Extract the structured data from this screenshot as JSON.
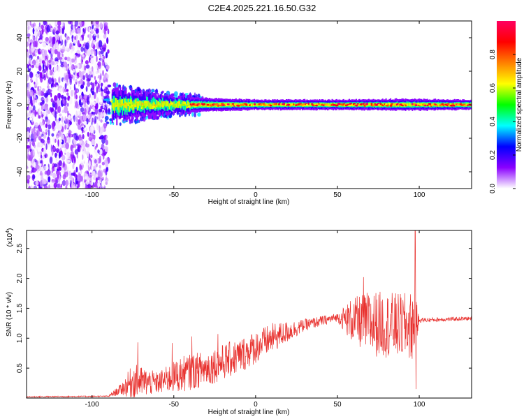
{
  "title": "C2E4.2025.221.16.50.G32",
  "colors": {
    "snr_line": "#e8312e",
    "frame": "#000000"
  },
  "chart_data": [
    {
      "type": "heatmap",
      "xlabel": "Height of straight line (km)",
      "ylabel": "Frequency (Hz)",
      "xlim": [
        -140,
        132
      ],
      "ylim": [
        -50,
        50
      ],
      "xticks": [
        -100,
        -50,
        0,
        50,
        100
      ],
      "yticks": [
        -40,
        -20,
        0,
        20,
        40
      ],
      "colorbar": {
        "label": "Normalized spectral amplitude",
        "range": [
          0.0,
          1.0
        ],
        "ticks": [
          "0.0",
          "0.2",
          "0.4",
          "0.6",
          "0.8"
        ],
        "colormap": [
          "#ffffff",
          "#8a00ff",
          "#0000ff",
          "#00ffff",
          "#00ff00",
          "#ffff00",
          "#ff8000",
          "#ff0000",
          "#ff0060"
        ]
      },
      "features": {
        "noise_region_x": [
          -140,
          -90
        ],
        "signal_center_freq_hz": 0,
        "signal_band": [
          {
            "x": -88,
            "halfwidth": 9
          },
          {
            "x": -70,
            "halfwidth": 7
          },
          {
            "x": -50,
            "halfwidth": 5
          },
          {
            "x": -30,
            "halfwidth": 4
          },
          {
            "x": 0,
            "halfwidth": 3
          },
          {
            "x": 50,
            "halfwidth": 3
          },
          {
            "x": 90,
            "halfwidth": 3.5
          },
          {
            "x": 132,
            "halfwidth": 3
          }
        ]
      }
    },
    {
      "type": "line",
      "xlabel": "Height of straight line (km)",
      "ylabel": "SNR (10 * v/v)",
      "yscale_label": "(x10",
      "yscale_exp": "4",
      "xlim": [
        -140,
        132
      ],
      "ylim": [
        0,
        2.8
      ],
      "xticks": [
        -100,
        -50,
        0,
        50,
        100
      ],
      "yticks": [
        "0.5",
        "1.0",
        "1.5",
        "2.0",
        "2.5"
      ],
      "series": [
        {
          "envelope": [
            {
              "x": -140,
              "mean": 0.02,
              "amp": 0.01
            },
            {
              "x": -90,
              "mean": 0.03,
              "amp": 0.01
            },
            {
              "x": -82,
              "mean": 0.15,
              "amp": 0.1
            },
            {
              "x": -75,
              "mean": 0.28,
              "amp": 0.3
            },
            {
              "x": -60,
              "mean": 0.25,
              "amp": 0.18
            },
            {
              "x": -45,
              "mean": 0.4,
              "amp": 0.3
            },
            {
              "x": -30,
              "mean": 0.5,
              "amp": 0.3
            },
            {
              "x": -10,
              "mean": 0.7,
              "amp": 0.3
            },
            {
              "x": 10,
              "mean": 1.0,
              "amp": 0.25
            },
            {
              "x": 30,
              "mean": 1.22,
              "amp": 0.1
            },
            {
              "x": 50,
              "mean": 1.35,
              "amp": 0.07
            },
            {
              "x": 58,
              "mean": 1.3,
              "amp": 0.35
            },
            {
              "x": 70,
              "mean": 1.25,
              "amp": 0.55
            },
            {
              "x": 90,
              "mean": 1.2,
              "amp": 0.55
            },
            {
              "x": 97,
              "mean": 1.2,
              "amp": 0.6
            },
            {
              "x": 100,
              "mean": 1.3,
              "amp": 0.04
            },
            {
              "x": 132,
              "mean": 1.33,
              "amp": 0.03
            }
          ],
          "peaks": [
            {
              "x": -72,
              "y": 0.93
            },
            {
              "x": -51,
              "y": 0.92
            },
            {
              "x": -39,
              "y": 1.03
            },
            {
              "x": -23,
              "y": 1.07
            },
            {
              "x": 66,
              "y": 2.02
            },
            {
              "x": 97.5,
              "y": 2.8
            },
            {
              "x": 98,
              "y": 0.15
            }
          ]
        }
      ]
    }
  ]
}
